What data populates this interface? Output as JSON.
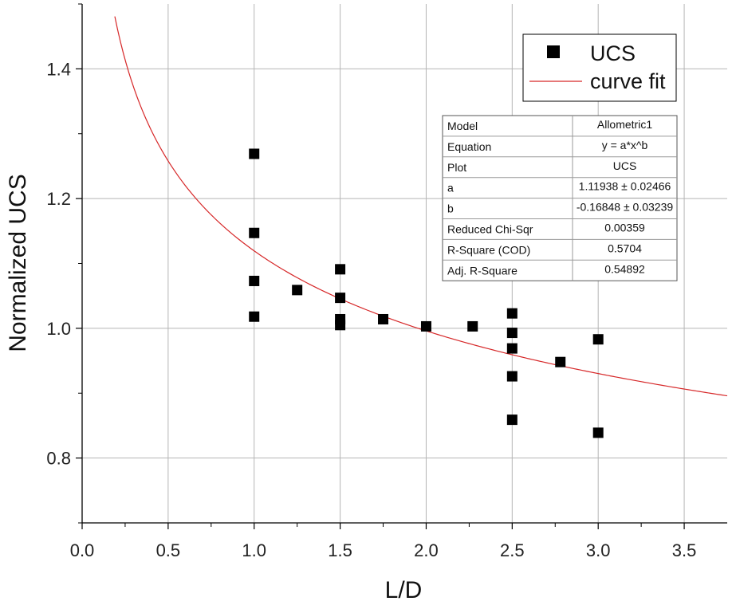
{
  "chart_data": {
    "type": "scatter",
    "xlabel": "L/D",
    "ylabel": "Normalized UCS",
    "xlim": [
      0.0,
      3.75
    ],
    "ylim": [
      0.7,
      1.5
    ],
    "x_ticks": [
      0.0,
      0.5,
      1.0,
      1.5,
      2.0,
      2.5,
      3.0,
      3.5
    ],
    "x_tick_labels": [
      "0.0",
      "0.5",
      "1.0",
      "1.5",
      "2.0",
      "2.5",
      "3.0",
      "3.5"
    ],
    "y_ticks": [
      0.8,
      1.0,
      1.2,
      1.4
    ],
    "y_tick_labels": [
      "0.8",
      "1.0",
      "1.2",
      "1.4"
    ],
    "grid": true,
    "legend_position": "top-right",
    "series": [
      {
        "name": "UCS",
        "type": "scatter",
        "marker": "square",
        "color": "#000000",
        "points": [
          [
            1.0,
            1.269
          ],
          [
            1.0,
            1.147
          ],
          [
            1.0,
            1.073
          ],
          [
            1.0,
            1.018
          ],
          [
            1.25,
            1.059
          ],
          [
            1.5,
            1.091
          ],
          [
            1.5,
            1.047
          ],
          [
            1.5,
            1.014
          ],
          [
            1.5,
            1.005
          ],
          [
            1.75,
            1.014
          ],
          [
            2.0,
            1.003
          ],
          [
            2.27,
            1.003
          ],
          [
            2.5,
            1.023
          ],
          [
            2.5,
            0.993
          ],
          [
            2.5,
            0.969
          ],
          [
            2.5,
            0.926
          ],
          [
            2.5,
            0.859
          ],
          [
            2.78,
            0.948
          ],
          [
            3.0,
            0.983
          ],
          [
            3.0,
            0.839
          ]
        ]
      },
      {
        "name": "curve fit",
        "type": "line",
        "color": "#d62728",
        "model": "allometric",
        "a": 1.11938,
        "b": -0.16848,
        "x_range": [
          0.19,
          3.75
        ]
      }
    ],
    "fit_table": {
      "rows": [
        {
          "label": "Model",
          "value": "Allometric1"
        },
        {
          "label": "Equation",
          "value": "y = a*x^b"
        },
        {
          "label": "Plot",
          "value": "UCS"
        },
        {
          "label": "a",
          "value": "1.11938 ± 0.02466"
        },
        {
          "label": "b",
          "value": "-0.16848 ± 0.03239"
        },
        {
          "label": "Reduced Chi-Sqr",
          "value": "0.00359"
        },
        {
          "label": "R-Square (COD)",
          "value": "0.5704"
        },
        {
          "label": "Adj. R-Square",
          "value": "0.54892"
        }
      ]
    }
  }
}
